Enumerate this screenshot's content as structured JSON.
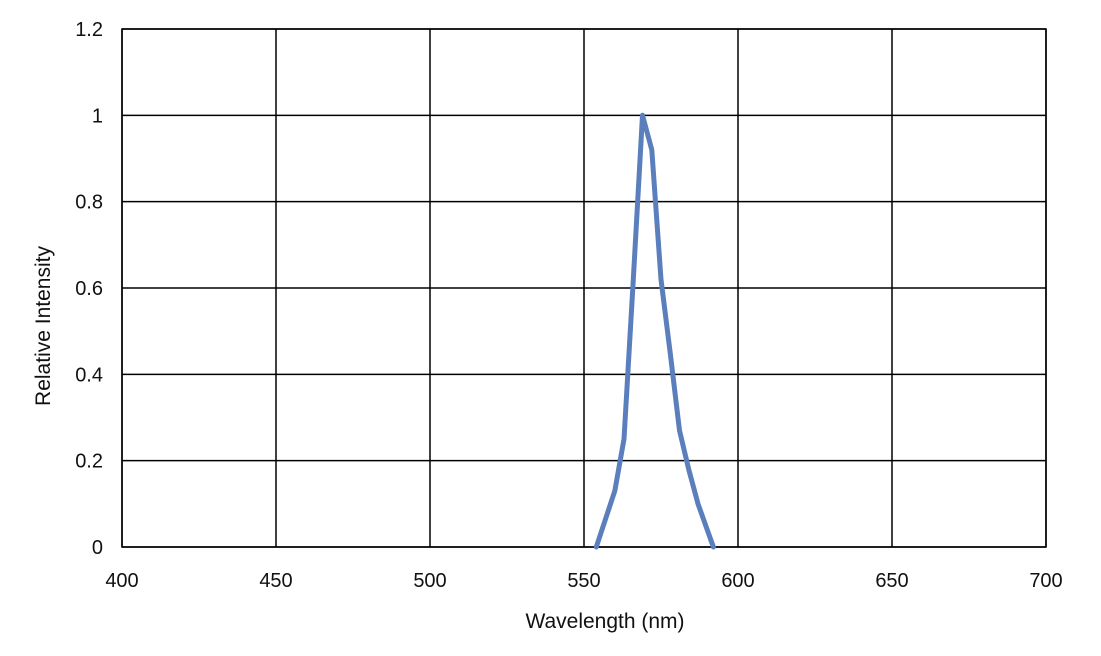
{
  "chart_data": {
    "type": "line",
    "title": "",
    "xlabel": "Wavelength (nm)",
    "ylabel": "Relative Intensity",
    "xlim": [
      400,
      700
    ],
    "ylim": [
      0,
      1.2
    ],
    "x_ticks": [
      "400",
      "450",
      "500",
      "550",
      "600",
      "650",
      "700"
    ],
    "y_ticks": [
      "0",
      "0.2",
      "0.4",
      "0.6",
      "0.8",
      "1",
      "1.2"
    ],
    "grid": true,
    "legend": "none",
    "series": [
      {
        "color": "#5b7fbd",
        "x": [
          554,
          560,
          563,
          566,
          569,
          572,
          575,
          578,
          581,
          584,
          587,
          590,
          592
        ],
        "y": [
          0,
          0.13,
          0.25,
          0.62,
          1.0,
          0.92,
          0.62,
          0.45,
          0.27,
          0.18,
          0.1,
          0.04,
          0
        ]
      }
    ]
  }
}
